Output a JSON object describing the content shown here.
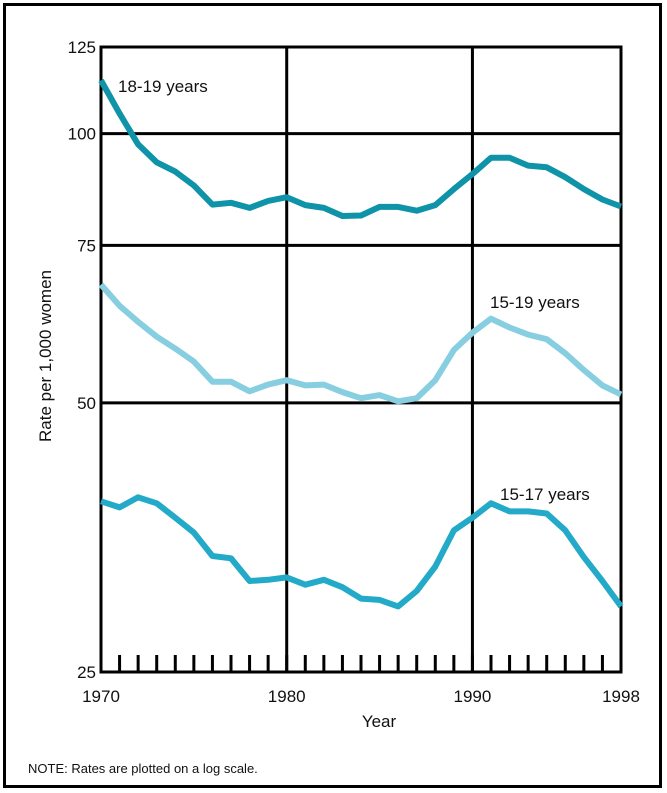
{
  "colors": {
    "dark_teal": "#0e93a8",
    "light_blue": "#87cfe0",
    "teal": "#22aac8",
    "frame": "#000000"
  },
  "chart_data": {
    "type": "line",
    "scale": "log",
    "xlabel": "Year",
    "ylabel": "Rate per 1,000 women",
    "xlim": [
      1970,
      1998
    ],
    "ylim": [
      25,
      125
    ],
    "grid": true,
    "x_ticks": [
      "1970",
      "1980",
      "1990",
      "1998"
    ],
    "y_ticks": [
      "25",
      "50",
      "75",
      "100",
      "125"
    ],
    "x": [
      1970,
      1971,
      1972,
      1973,
      1974,
      1975,
      1976,
      1977,
      1978,
      1979,
      1980,
      1981,
      1982,
      1983,
      1984,
      1985,
      1986,
      1987,
      1988,
      1989,
      1990,
      1991,
      1992,
      1993,
      1994,
      1995,
      1996,
      1997,
      1998
    ],
    "series": [
      {
        "name": "18-19 years",
        "color": "dark_teal",
        "values": [
          114.7,
          105.3,
          97.3,
          92.9,
          90.7,
          87.5,
          83.3,
          83.7,
          82.6,
          84.1,
          84.9,
          83.2,
          82.6,
          80.9,
          81.0,
          82.8,
          82.8,
          82.0,
          83.2,
          86.7,
          90.1,
          94.0,
          94.0,
          92.1,
          91.7,
          89.4,
          86.7,
          84.4,
          82.9
        ]
      },
      {
        "name": "15-19 years",
        "color": "light_blue",
        "values": [
          67.8,
          64.2,
          61.6,
          59.3,
          57.5,
          55.6,
          52.8,
          52.8,
          51.5,
          52.4,
          53.0,
          52.3,
          52.4,
          51.4,
          50.6,
          51.0,
          50.2,
          50.6,
          53.0,
          57.3,
          59.9,
          62.1,
          60.7,
          59.6,
          58.9,
          56.8,
          54.4,
          52.3,
          51.1
        ]
      },
      {
        "name": "15-17 years",
        "color": "teal",
        "values": [
          38.8,
          38.2,
          39.2,
          38.6,
          37.2,
          35.8,
          33.7,
          33.5,
          31.6,
          31.7,
          31.9,
          31.3,
          31.7,
          31.1,
          30.2,
          30.1,
          29.6,
          30.8,
          32.8,
          36.0,
          37.2,
          38.6,
          37.8,
          37.8,
          37.6,
          36.0,
          33.6,
          31.6,
          29.6
        ]
      }
    ],
    "annotations": [
      "18-19 years",
      "15-19 years",
      "15-17 years"
    ]
  },
  "note": "NOTE: Rates are plotted on a log scale."
}
